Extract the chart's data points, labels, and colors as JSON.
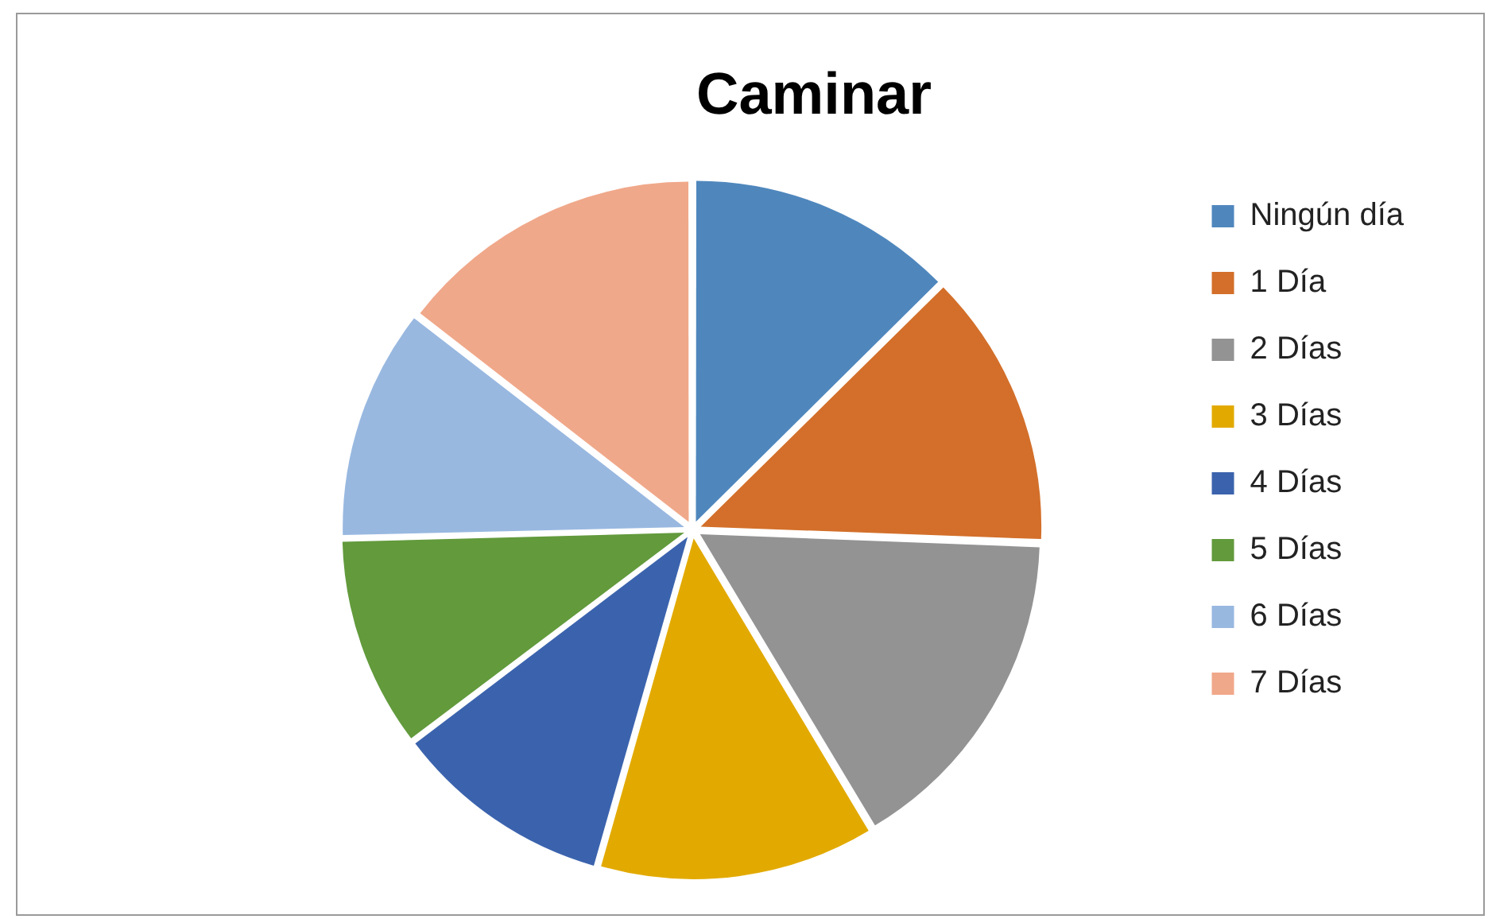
{
  "chart_data": {
    "type": "pie",
    "title": "Caminar",
    "categories": [
      "Ningún día",
      "1 Día",
      "2 Días",
      "3 Días",
      "4 Días",
      "5 Días",
      "6 Días",
      "7 Días"
    ],
    "values": [
      12.6,
      13,
      15.8,
      13,
      10.3,
      9.9,
      10.9,
      14.5
    ],
    "colors": [
      "#4f87bd",
      "#d36f2a",
      "#939393",
      "#e2aa00",
      "#3b63ad",
      "#629a3c",
      "#98b8e0",
      "#f0a88a"
    ],
    "legend": "right"
  }
}
